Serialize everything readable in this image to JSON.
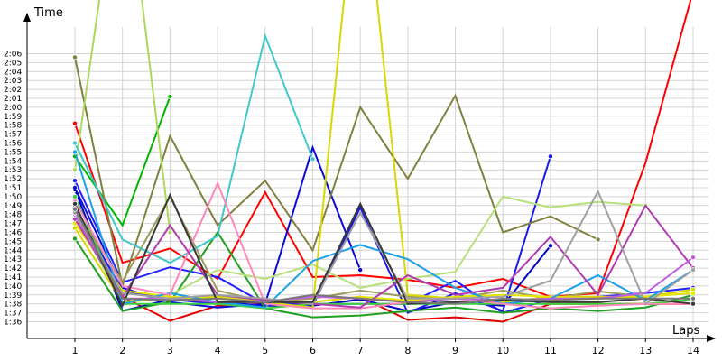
{
  "chart_data": {
    "type": "line",
    "ylabel": "Time",
    "xlabel": "Laps",
    "x": [
      1,
      2,
      3,
      4,
      5,
      6,
      7,
      8,
      9,
      10,
      11,
      12,
      13,
      14
    ],
    "x_tick_labels": [
      "1",
      "2",
      "3",
      "4",
      "5",
      "6",
      "7",
      "8",
      "9",
      "10",
      "11",
      "12",
      "13",
      "14"
    ],
    "ylim": [
      95,
      127
    ],
    "y_ticks": [
      {
        "v": 96,
        "label": "1:36"
      },
      {
        "v": 97,
        "label": "1:37"
      },
      {
        "v": 98,
        "label": "1:38"
      },
      {
        "v": 99,
        "label": "1:39"
      },
      {
        "v": 100,
        "label": "1:40"
      },
      {
        "v": 101,
        "label": "1:41"
      },
      {
        "v": 102,
        "label": "1:42"
      },
      {
        "v": 103,
        "label": "1:43"
      },
      {
        "v": 104,
        "label": "1:44"
      },
      {
        "v": 105,
        "label": "1:45"
      },
      {
        "v": 106,
        "label": "1:46"
      },
      {
        "v": 107,
        "label": "1:47"
      },
      {
        "v": 108,
        "label": "1:48"
      },
      {
        "v": 109,
        "label": "1:49"
      },
      {
        "v": 110,
        "label": "1:50"
      },
      {
        "v": 111,
        "label": "1:51"
      },
      {
        "v": 112,
        "label": "1:52"
      },
      {
        "v": 113,
        "label": "1:53"
      },
      {
        "v": 114,
        "label": "1:54"
      },
      {
        "v": 115,
        "label": "1:55"
      },
      {
        "v": 116,
        "label": "1:56"
      },
      {
        "v": 117,
        "label": "1:57"
      },
      {
        "v": 118,
        "label": "1:58"
      },
      {
        "v": 119,
        "label": "1:59"
      },
      {
        "v": 120,
        "label": "2:00"
      },
      {
        "v": 121,
        "label": "2:01"
      },
      {
        "v": 122,
        "label": "2:02"
      },
      {
        "v": 123,
        "label": "2:03"
      },
      {
        "v": 124,
        "label": "2:04"
      },
      {
        "v": 125,
        "label": "2:05"
      },
      {
        "v": 126,
        "label": "2:06"
      }
    ],
    "grid": true,
    "legend": "none",
    "series": [
      {
        "color": "#ff0000",
        "values": [
          118.2,
          102.6,
          104.2,
          100.8,
          110.5,
          101.0,
          101.2,
          100.7,
          99.8,
          100.8,
          98.8,
          99.2,
          113.8,
          133.0
        ]
      },
      {
        "color": "#e10000",
        "values": [
          109.0,
          98.8,
          96.1,
          97.8,
          98.0,
          98.2,
          98.8,
          96.2,
          96.5,
          96.0,
          98.0,
          98.0,
          98.0,
          98.0
        ]
      },
      {
        "color": "#2020ff",
        "values": [
          111.8,
          100.4,
          102.1,
          101.0,
          98.0,
          98.0,
          98.0,
          98.0,
          100.6,
          97.0,
          98.5,
          98.8,
          99.2,
          99.8
        ]
      },
      {
        "color": "#0000c0",
        "values": [
          110.8,
          97.2,
          98.5,
          98.2,
          97.8,
          97.8,
          98.5,
          97.2,
          98.2,
          97.8,
          104.5,
          null,
          null,
          null
        ]
      },
      {
        "color": "#0a0ad8",
        "values": [
          111.0,
          99.8,
          98.2,
          97.6,
          98.0,
          115.5,
          101.8,
          null,
          null,
          null,
          null,
          null,
          null,
          null
        ]
      },
      {
        "color": "#1a1ae8",
        "values": [
          108.8,
          99.5,
          98.5,
          98.0,
          98.5,
          97.8,
          108.8,
          97.0,
          99.2,
          97.2,
          114.5,
          null,
          null,
          null
        ]
      },
      {
        "color": "#00b400",
        "values": [
          114.5,
          106.8,
          121.2,
          null,
          null,
          null,
          null,
          null,
          null,
          null,
          null,
          null,
          null,
          null
        ]
      },
      {
        "color": "#20a020",
        "values": [
          105.3,
          97.2,
          98.2,
          106.0,
          97.5,
          96.5,
          96.7,
          97.2,
          97.6,
          97.0,
          97.5,
          97.2,
          97.6,
          99.0
        ]
      },
      {
        "color": "#3cd23c",
        "values": [
          110.0,
          98.0,
          98.0,
          98.0,
          97.5,
          98.0,
          98.0,
          98.0,
          98.0,
          98.0,
          98.0,
          98.0,
          98.0,
          98.5
        ]
      },
      {
        "color": "#808040",
        "values": [
          125.6,
          100.0,
          116.8,
          106.8,
          111.8,
          104.0,
          120.0,
          112.0,
          121.3,
          106.0,
          107.8,
          105.2,
          null,
          null
        ]
      },
      {
        "color": "#9c9c5c",
        "values": [
          108.5,
          100.5,
          110.0,
          99.5,
          98.2,
          98.6,
          99.5,
          98.8,
          98.6,
          99.5,
          98.6,
          99.4,
          98.8,
          99.2
        ]
      },
      {
        "color": "#aed65a",
        "values": [
          113.0,
          150.0,
          106.0,
          null,
          null,
          null,
          null,
          null,
          null,
          null,
          null,
          null,
          null,
          null
        ]
      },
      {
        "color": "#b6e07a",
        "values": [
          107.8,
          98.2,
          99.0,
          101.8,
          100.8,
          102.4,
          99.8,
          100.8,
          101.6,
          110.0,
          108.8,
          109.4,
          109.0,
          null
        ]
      },
      {
        "color": "#d8d800",
        "values": [
          106.5,
          98.2,
          98.6,
          98.8,
          98.2,
          97.6,
          150.0,
          99.0,
          98.6,
          98.2,
          98.8,
          98.8,
          98.8,
          99.6
        ]
      },
      {
        "color": "#e6e600",
        "values": [
          107.0,
          99.5,
          98.8,
          98.6,
          98.4,
          98.2,
          98.8,
          98.4,
          98.8,
          99.0,
          98.8,
          98.6,
          98.8,
          99.2
        ]
      },
      {
        "color": "#40c8c8",
        "values": [
          116.0,
          105.2,
          102.6,
          105.6,
          128.0,
          114.2,
          null,
          null,
          null,
          null,
          null,
          null,
          null,
          null
        ]
      },
      {
        "color": "#1ea0e6",
        "values": [
          115.0,
          98.0,
          99.2,
          98.2,
          97.6,
          102.8,
          104.6,
          103.0,
          99.8,
          98.0,
          98.6,
          101.2,
          98.4,
          101.8
        ]
      },
      {
        "color": "#ff88bb",
        "values": [
          109.5,
          100.0,
          99.0,
          111.5,
          98.0,
          97.5,
          97.5,
          98.2,
          98.6,
          98.0,
          97.5,
          97.8,
          98.0,
          98.0
        ]
      },
      {
        "color": "#b03cb0",
        "values": [
          107.5,
          98.8,
          106.8,
          99.0,
          98.4,
          98.0,
          97.6,
          101.2,
          99.0,
          99.8,
          105.5,
          99.0,
          109.0,
          102.0
        ]
      },
      {
        "color": "#c060e0",
        "values": [
          108.0,
          98.6,
          98.6,
          98.2,
          98.2,
          98.8,
          98.6,
          98.2,
          98.6,
          98.4,
          98.6,
          98.6,
          99.2,
          103.2
        ]
      },
      {
        "color": "#a0a0a0",
        "values": [
          108.2,
          99.2,
          98.6,
          99.0,
          98.6,
          98.0,
          108.2,
          98.6,
          98.6,
          98.8,
          100.6,
          110.6,
          98.0,
          101.8
        ]
      },
      {
        "color": "#383838",
        "values": [
          109.2,
          97.8,
          110.2,
          98.2,
          98.2,
          98.2,
          109.2,
          98.0,
          98.2,
          98.4,
          98.2,
          98.2,
          98.6,
          98.0
        ]
      },
      {
        "color": "#787878",
        "values": [
          108.6,
          98.6,
          98.4,
          98.6,
          98.2,
          99.0,
          98.6,
          98.2,
          98.0,
          98.6,
          98.4,
          98.6,
          98.6,
          98.6
        ]
      }
    ]
  }
}
